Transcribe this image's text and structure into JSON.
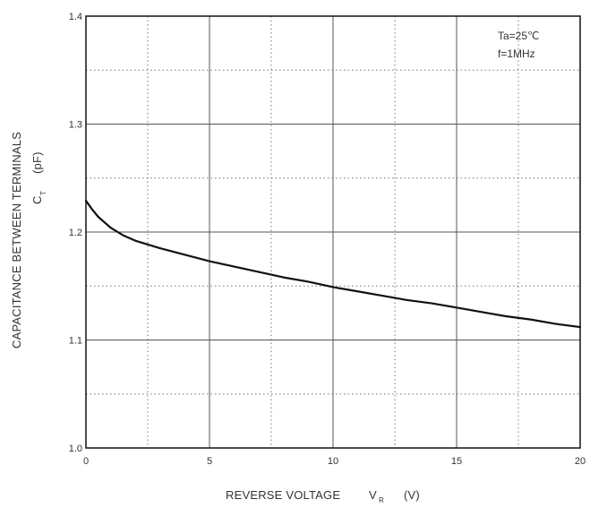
{
  "chart_data": {
    "type": "line",
    "title": "",
    "xlabel": "REVERSE VOLTAGE",
    "xlabel_symbol": "V",
    "xlabel_symbol_sub": "R",
    "xlabel_unit": "(V)",
    "ylabel_line1": "CAPACITANCE BETWEEN TERMINALS",
    "ylabel_symbol": "C",
    "ylabel_symbol_sub": "T",
    "ylabel_unit": "(pF)",
    "xlim": [
      0,
      20
    ],
    "ylim": [
      1.0,
      1.4
    ],
    "xticks": [
      0,
      5,
      10,
      15,
      20
    ],
    "xtick_labels": [
      "0",
      "5",
      "10",
      "15",
      "20"
    ],
    "yticks": [
      1.0,
      1.1,
      1.2,
      1.3,
      1.4
    ],
    "ytick_labels": [
      "1.0",
      "1.1",
      "1.2",
      "1.3",
      "1.4"
    ],
    "grid": "solid major lines with dotted minor lines",
    "annotations": [
      "Ta=25℃",
      "f=1MHz"
    ],
    "series": [
      {
        "color": "#111111",
        "x": [
          0,
          0.25,
          0.5,
          1,
          1.5,
          2,
          3,
          4,
          5,
          6,
          7,
          8,
          9,
          10,
          11,
          12,
          13,
          14,
          15,
          16,
          17,
          18,
          19,
          20
        ],
        "y": [
          1.229,
          1.221,
          1.214,
          1.204,
          1.197,
          1.192,
          1.185,
          1.179,
          1.173,
          1.168,
          1.163,
          1.158,
          1.154,
          1.149,
          1.145,
          1.141,
          1.137,
          1.134,
          1.13,
          1.126,
          1.122,
          1.119,
          1.115,
          1.112
        ]
      }
    ]
  }
}
